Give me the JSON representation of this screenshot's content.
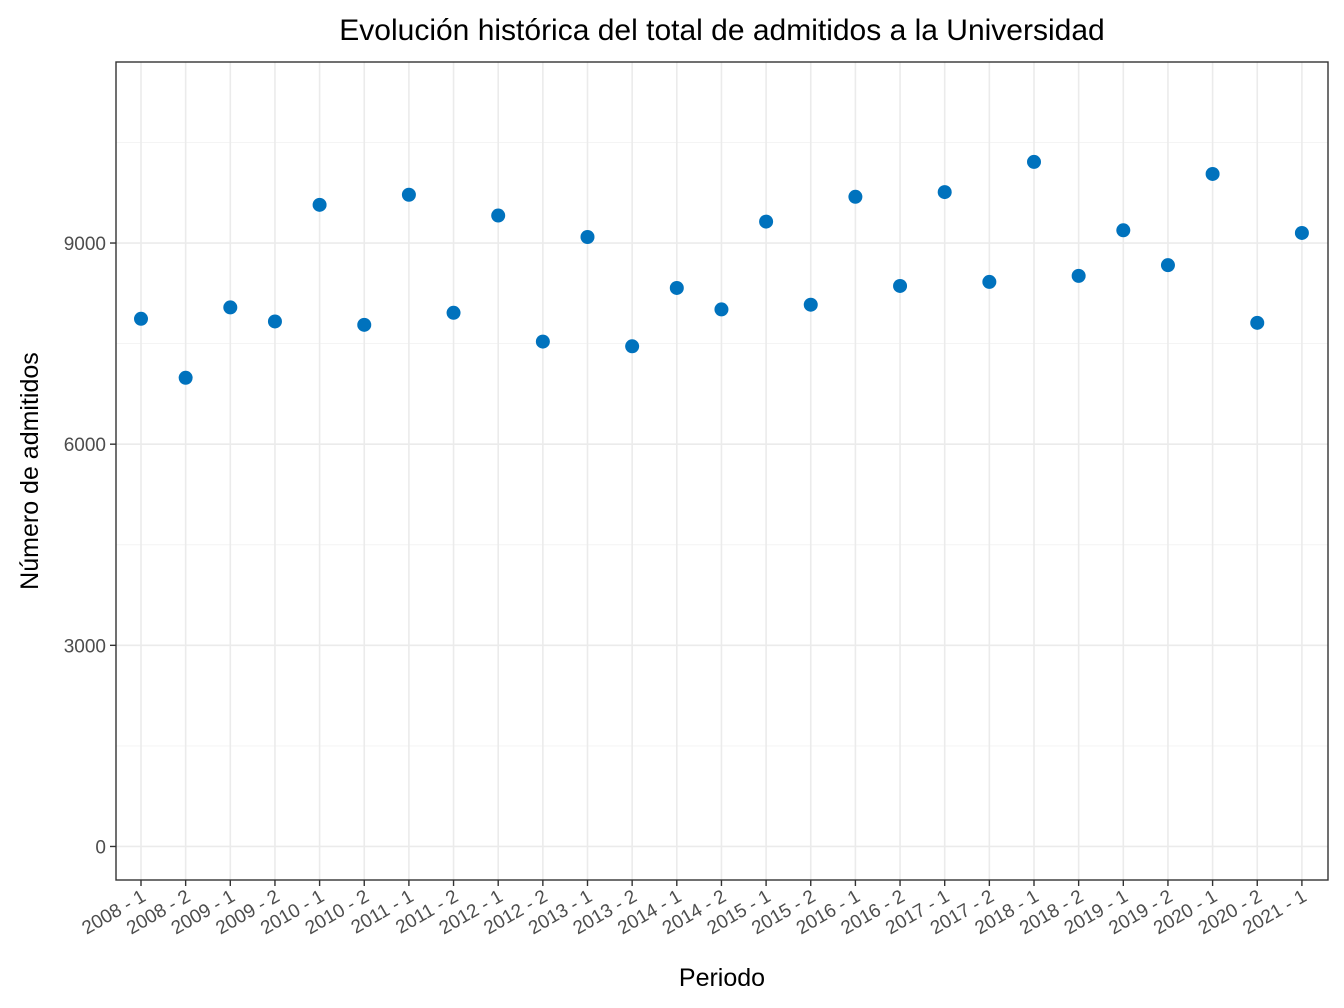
{
  "chart_data": {
    "type": "scatter",
    "title": "Evolución histórica del total de admitidos a la Universidad",
    "xlabel": "Periodo",
    "ylabel": "Número de admitidos",
    "categories": [
      "2008 - 1",
      "2008 - 2",
      "2009 - 1",
      "2009 - 2",
      "2010 - 1",
      "2010 - 2",
      "2011 - 1",
      "2011 - 2",
      "2012 - 1",
      "2012 - 2",
      "2013 - 1",
      "2013 - 2",
      "2014 - 1",
      "2014 - 2",
      "2015 - 1",
      "2015 - 2",
      "2016 - 1",
      "2016 - 2",
      "2017 - 1",
      "2017 - 2",
      "2018 - 1",
      "2018 - 2",
      "2019 - 1",
      "2019 - 2",
      "2020 - 1",
      "2020 - 2",
      "2021 - 1"
    ],
    "values": [
      7870,
      6990,
      8040,
      7830,
      9570,
      7780,
      9720,
      7960,
      9410,
      7530,
      9090,
      7460,
      8330,
      8010,
      9320,
      8080,
      9690,
      8360,
      9760,
      8420,
      10210,
      8510,
      9190,
      8670,
      10030,
      7810,
      9150
    ],
    "yticks": [
      0,
      3000,
      6000,
      9000
    ],
    "ylim": [
      -500,
      11700
    ],
    "grid": true,
    "legend": "none",
    "point_color": "#0072bd"
  }
}
